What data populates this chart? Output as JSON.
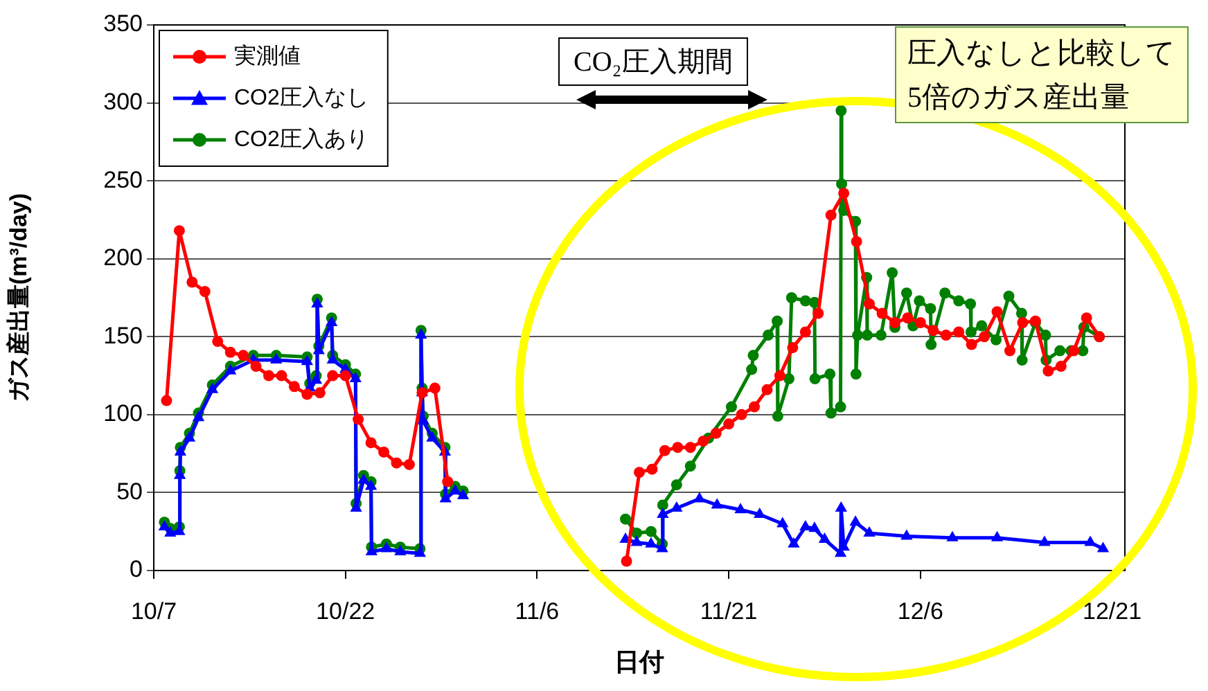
{
  "chart_data": {
    "type": "line",
    "xlabel": "日付",
    "ylabel": "ガス産出量(m³/day)",
    "xlim": [
      "--10-07",
      "--12-22"
    ],
    "xticks": [
      {
        "value": "--10-07",
        "label": "10/7"
      },
      {
        "value": "--10-22",
        "label": "10/22"
      },
      {
        "value": "--11-06",
        "label": "11/6"
      },
      {
        "value": "--11-21",
        "label": "11/21"
      },
      {
        "value": "--12-06",
        "label": "12/6"
      },
      {
        "value": "--12-21",
        "label": "12/21"
      }
    ],
    "ylim": [
      0,
      350
    ],
    "yticks": [
      0,
      50,
      100,
      150,
      200,
      250,
      300,
      350
    ],
    "grid": "y",
    "legend": "top left",
    "line_style": "solid",
    "annotations": [
      "CO₂圧入期間",
      "圧入なしと比較して\n5倍のガス産出量"
    ],
    "series": [
      {
        "name": "実測値",
        "color": "#ff0000",
        "marker": "circle",
        "x": [
          "--10-08",
          "--10-09",
          "--10-10",
          "--10-11",
          "--10-12",
          "--10-13",
          "--10-14",
          "--10-15",
          "--10-16",
          "--10-17",
          "--10-18",
          "--10-19",
          "--10-20",
          "--10-21",
          "--10-22",
          "--10-23",
          "--10-24",
          "--10-25",
          "--10-26",
          "--10-27",
          "--10-28",
          "--10-29",
          "--10-30",
          "--11-05",
          "--11-13",
          "--11-14",
          "--11-15",
          "--11-16",
          "--11-17",
          "--11-18",
          "--11-19",
          "--11-20",
          "--11-21",
          "--11-22",
          "--11-23",
          "--11-24",
          "--11-25",
          "--11-26",
          "--11-27",
          "--11-28",
          "--11-29",
          "--11-30",
          "--12-01",
          "--12-02",
          "--12-03",
          "--12-04",
          "--12-05",
          "--12-06",
          "--12-07",
          "--12-08",
          "--12-09",
          "--12-10",
          "--12-11",
          "--12-12",
          "--12-13",
          "--12-14",
          "--12-15",
          "--12-16",
          "--12-17",
          "--12-18",
          "--12-19",
          "--12-20"
        ],
        "values": [
          109,
          218,
          185,
          179,
          147,
          140,
          138,
          131,
          125,
          125,
          118,
          113,
          114,
          125,
          125,
          97,
          82,
          76,
          69,
          68,
          114,
          117,
          57,
          null,
          6,
          63,
          65,
          77,
          79,
          79,
          83,
          88,
          94,
          100,
          105,
          116,
          125,
          143,
          153,
          165,
          228,
          242,
          211,
          171,
          165,
          159,
          162,
          159,
          154,
          151,
          153,
          145,
          150,
          166,
          141,
          159,
          160,
          128,
          131,
          141,
          162,
          150
        ]
      },
      {
        "name": "CO2圧入なし",
        "color": "#0000ff",
        "marker": "triangle",
        "x": [
          "--10-07T20:00",
          "--10-08T07:00",
          "--10-09T00:00",
          "--10-09T01:00",
          "--10-09T02:00",
          "--10-09T19:00",
          "--10-10T12:00",
          "--10-11T14:00",
          "--10-13T00:00",
          "--10-14T19:00",
          "--10-16T14:00",
          "--10-19T00:00",
          "--10-19T05:00",
          "--10-19T17:00",
          "--10-19T19:00",
          "--10-19T22:00",
          "--10-20T22:00",
          "--10-21T00:00",
          "--10-22T00:00",
          "--10-22T19:00",
          "--10-22T20:00",
          "--10-23T10:00",
          "--10-24T00:00",
          "--10-24T01:00",
          "--10-25T05:00",
          "--10-26T07:00",
          "--10-27T20:00",
          "--10-27T22:00",
          "--10-28T00:00",
          "--10-28T02:00",
          "--10-28T19:00",
          "--10-29T19:00",
          "--10-29T20:00",
          "--10-30T14:00",
          "--10-31T05:00",
          "--11-05",
          "--11-12T22:00",
          "--11-13T19:00",
          "--11-14T22:00",
          "--11-15T19:00",
          "--11-15T20:00",
          "--11-16T22:00",
          "--11-18T17:00",
          "--11-20T02:00",
          "--11-21T22:00",
          "--11-23T10:00",
          "--11-25T05:00",
          "--11-26T02:00",
          "--11-27T00:00",
          "--11-27T17:00",
          "--11-28T12:00",
          "--11-29T18:00",
          "--11-29T19:00",
          "--11-30T00:00",
          "--11-30T22:00",
          "--12-02T00:00",
          "--12-04T22:00",
          "--12-08T12:00",
          "--12-12T00:00",
          "--12-15T17:00",
          "--12-19T07:00",
          "--12-20T07:00"
        ],
        "values": [
          28,
          24,
          25,
          61,
          76,
          85,
          98,
          116,
          128,
          135,
          135,
          134,
          117,
          122,
          171,
          141,
          159,
          135,
          129,
          123,
          40,
          58,
          54,
          12,
          14,
          12,
          11,
          151,
          114,
          96,
          85,
          76,
          46,
          51,
          48,
          null,
          20,
          18,
          17,
          14,
          36,
          40,
          46,
          42,
          39,
          36,
          30,
          17,
          28,
          27,
          20,
          11,
          40,
          15,
          31,
          24,
          22,
          21,
          21,
          18,
          18,
          14
        ]
      },
      {
        "name": "CO2圧入あり",
        "color": "#008000",
        "marker": "circle",
        "x": [
          "--10-07T20:00",
          "--10-08T07:00",
          "--10-09T00:00",
          "--10-09T01:00",
          "--10-09T02:00",
          "--10-09T19:00",
          "--10-10T12:00",
          "--10-11T14:00",
          "--10-13T00:00",
          "--10-14T19:00",
          "--10-16T14:00",
          "--10-19T00:00",
          "--10-19T05:00",
          "--10-19T17:00",
          "--10-19T19:00",
          "--10-19T22:00",
          "--10-20T22:00",
          "--10-21T00:00",
          "--10-22T00:00",
          "--10-22T19:00",
          "--10-22T20:00",
          "--10-23T10:00",
          "--10-24T00:00",
          "--10-24T01:00",
          "--10-25T05:00",
          "--10-26T07:00",
          "--10-27T20:00",
          "--10-27T22:00",
          "--10-28T00:00",
          "--10-28T02:00",
          "--10-28T19:00",
          "--10-29T19:00",
          "--10-29T20:00",
          "--10-30T14:00",
          "--10-31T05:00",
          "--11-05",
          "--11-12T22:00",
          "--11-13T19:00",
          "--11-14T22:00",
          "--11-15T19:00",
          "--11-15T20:00",
          "--11-16T22:00",
          "--11-18T00:00",
          "--11-19T10:00",
          "--11-21T05:00",
          "--11-22T19:00",
          "--11-22T22:00",
          "--11-24T02:00",
          "--11-24T19:00",
          "--11-24T20:00",
          "--11-25T17:00",
          "--11-25T22:00",
          "--11-27T00:00",
          "--11-27T17:00",
          "--11-27T18:00",
          "--11-28T22:00",
          "--11-29T00:00",
          "--11-29T18:00",
          "--11-29T19:00",
          "--11-29T20:00",
          "--11-30T00:00",
          "--11-30T22:00",
          "--11-30T23:00",
          "--12-01T02:00",
          "--12-01T19:00",
          "--12-01T20:00",
          "--12-02T22:00",
          "--12-03T19:00",
          "--12-04T00:00",
          "--12-04T22:00",
          "--12-05T10:00",
          "--12-05T22:00",
          "--12-06T19:00",
          "--12-06T20:00",
          "--12-07T22:00",
          "--12-09T00:00",
          "--12-09T22:00",
          "--12-09T23:00",
          "--12-10T19:00",
          "--12-11T22:00",
          "--12-12T22:00",
          "--12-13T22:00",
          "--12-13T23:00",
          "--12-15T00:00",
          "--12-15T19:00",
          "--12-15T20:00",
          "--12-16T22:00",
          "--12-17T19:00",
          "--12-18T17:00",
          "--12-18T19:00",
          "--12-20T00:00"
        ],
        "values": [
          31,
          27,
          28,
          64,
          79,
          88,
          101,
          119,
          131,
          138,
          138,
          137,
          120,
          125,
          174,
          144,
          162,
          138,
          132,
          126,
          43,
          61,
          57,
          15,
          17,
          15,
          14,
          154,
          117,
          99,
          88,
          79,
          49,
          54,
          51,
          null,
          33,
          24,
          25,
          17,
          42,
          55,
          67,
          85,
          105,
          129,
          138,
          151,
          160,
          99,
          123,
          175,
          173,
          172,
          123,
          126,
          101,
          105,
          295,
          248,
          231,
          224,
          126,
          151,
          188,
          151,
          151,
          191,
          156,
          178,
          157,
          173,
          168,
          145,
          178,
          173,
          171,
          153,
          157,
          148,
          176,
          165,
          135,
          159,
          151,
          135,
          141,
          141,
          141,
          156,
          150
        ]
      }
    ]
  }
}
